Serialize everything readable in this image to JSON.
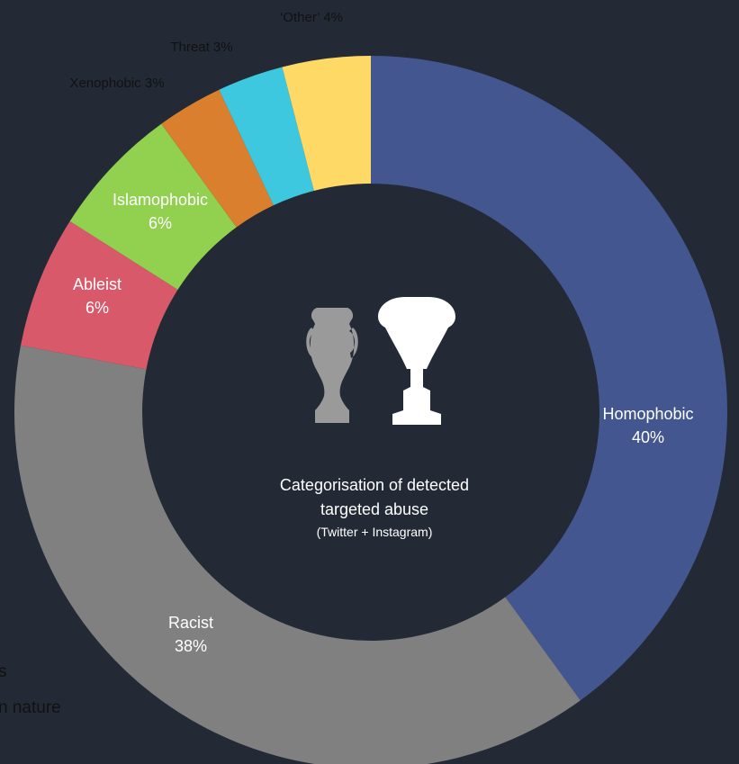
{
  "chart_data": {
    "type": "donut",
    "title": [
      "Categorisation of detected",
      "targeted abuse"
    ],
    "subtitle": "(Twitter + Instagram)",
    "categories": [
      "Homophobic",
      "Racist",
      "Ableist",
      "Islamophobic",
      "Xenophobic",
      "Threat",
      "‘Other’"
    ],
    "values": [
      40,
      38,
      6,
      6,
      3,
      3,
      4
    ],
    "value_labels": [
      "40%",
      "38%",
      "6%",
      "6%",
      "3%",
      "3%",
      "4%"
    ],
    "colors": [
      "#435690",
      "#808080",
      "#d85a6a",
      "#92d050",
      "#d97f2e",
      "#3dc8e0",
      "#ffd966"
    ],
    "side_text": [
      "s",
      "n nature"
    ]
  }
}
